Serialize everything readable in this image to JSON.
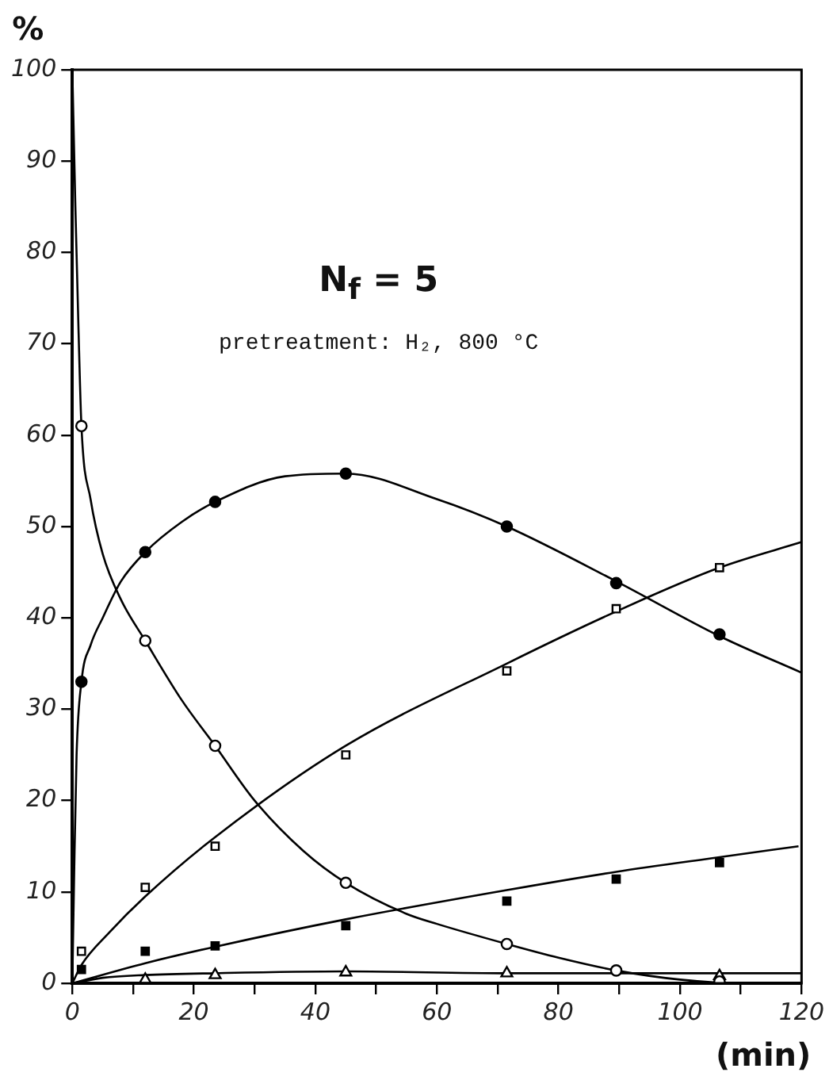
{
  "chart_data": {
    "type": "scatter",
    "xlabel": "(min)",
    "ylabel": "%",
    "annotations": [
      "N$_{f}$ = 5",
      "pretreatment: H₂, 800 °C"
    ],
    "xlim": [
      0,
      120
    ],
    "ylim": [
      0,
      100
    ],
    "xticks": [
      0,
      {
        "value": 10,
        "label": null
      },
      20,
      {
        "value": 30,
        "label": null
      },
      40,
      {
        "value": 50,
        "label": null
      },
      60,
      {
        "value": 70,
        "label": null
      },
      80,
      {
        "value": 90,
        "label": null
      },
      100,
      {
        "value": 110,
        "label": null
      },
      120
    ],
    "yticks": [
      0,
      10,
      20,
      30,
      40,
      50,
      60,
      70,
      80,
      90,
      100
    ],
    "grid": false,
    "legend": false,
    "series": [
      {
        "marker": "circle",
        "color": "#ffffff",
        "x": [
          1.5,
          12,
          23.5,
          45,
          71.5,
          89.5,
          106.5
        ],
        "values": [
          61,
          37.5,
          26,
          11,
          4.3,
          1.4,
          0.2
        ]
      },
      {
        "marker": "circle",
        "color": "#000000",
        "x": [
          1.5,
          12,
          23.5,
          45,
          71.5,
          89.5,
          106.5
        ],
        "values": [
          33,
          47.2,
          52.7,
          55.8,
          50,
          43.8,
          38.2
        ]
      },
      {
        "marker": "square",
        "color": "#ffffff",
        "x": [
          1.5,
          12,
          23.5,
          45,
          71.5,
          89.5,
          106.5
        ],
        "values": [
          3.5,
          10.5,
          15,
          25,
          34.2,
          41,
          45.5
        ]
      },
      {
        "marker": "square",
        "color": "#000000",
        "x": [
          1.5,
          12,
          23.5,
          45,
          71.5,
          89.5,
          106.5
        ],
        "values": [
          1.5,
          3.5,
          4.1,
          6.3,
          9,
          11.4,
          13.2
        ]
      },
      {
        "marker": "triangle",
        "color": "#ffffff",
        "x": [
          12,
          23.5,
          45,
          71.5,
          106.5
        ],
        "values": [
          0.4,
          0.9,
          1.2,
          1.1,
          0.8
        ]
      },
      {
        "type": "line",
        "marker": "none",
        "color": "#000000",
        "x": [
          0,
          0.5,
          1,
          1.5,
          3,
          5,
          8,
          12,
          18,
          23.5,
          30,
          38,
          45,
          55,
          60,
          71.5,
          80,
          89.5,
          100,
          110,
          120
        ],
        "values": [
          100,
          85,
          72,
          61,
          53,
          47,
          42,
          37.5,
          31,
          26,
          20,
          14.5,
          11,
          7.6,
          6.5,
          4.3,
          2.8,
          1.4,
          0.4,
          0,
          0
        ]
      },
      {
        "type": "line",
        "marker": "none",
        "color": "#000000",
        "x": [
          0,
          0.3,
          0.7,
          1.5,
          3,
          5,
          8,
          12,
          18,
          23.5,
          35,
          45,
          60,
          71.5,
          89.5,
          106.5,
          120
        ],
        "values": [
          0,
          12,
          25,
          33,
          37,
          40,
          44,
          47.2,
          50.5,
          52.7,
          55.5,
          55.8,
          53,
          50,
          44,
          38,
          34
        ]
      },
      {
        "type": "line",
        "marker": "none",
        "color": "#000000",
        "x": [
          0,
          1.5,
          6,
          12,
          23.5,
          45,
          71.5,
          89.5,
          106.5,
          120
        ],
        "values": [
          0,
          2,
          5.5,
          9.5,
          16,
          26,
          35,
          40.7,
          45.5,
          48.3
        ]
      },
      {
        "type": "line",
        "marker": "none",
        "color": "#000000",
        "x": [
          0,
          12,
          23.5,
          45,
          71.5,
          89.5,
          106.5,
          119.5
        ],
        "values": [
          0,
          2.2,
          4,
          7,
          10.2,
          12.2,
          13.8,
          15
        ]
      },
      {
        "type": "line",
        "marker": "none",
        "color": "#000000",
        "x": [
          0,
          5,
          12,
          23.5,
          45,
          71.5,
          100,
          120
        ],
        "values": [
          0,
          0.6,
          0.9,
          1.1,
          1.3,
          1.1,
          1.1,
          1.1
        ]
      }
    ]
  }
}
